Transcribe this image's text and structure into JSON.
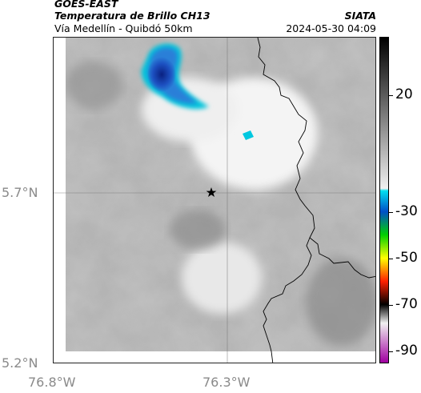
{
  "header": {
    "source": "GOES-EAST",
    "product": "Temperatura de Brillo CH13",
    "region": "Vía Medellín - Quibdó 50km",
    "org": "SIATA",
    "datetime": "2024-05-30 04:09"
  },
  "axes": {
    "x_ticks": [
      "76.8°W",
      "76.3°W"
    ],
    "y_ticks": [
      "5.7°N",
      "5.2°N"
    ]
  },
  "colorbar": {
    "ticks": [
      "20",
      "-30",
      "-50",
      "-70",
      "-90"
    ],
    "unit_range": [
      -95,
      45
    ],
    "stops": [
      {
        "v": 45,
        "c": "#000000"
      },
      {
        "v": -20,
        "c": "#f0f0f0"
      },
      {
        "v": -21,
        "c": "#00e0f0"
      },
      {
        "v": -30,
        "c": "#0050c8"
      },
      {
        "v": -40,
        "c": "#00d000"
      },
      {
        "v": -50,
        "c": "#ffff00"
      },
      {
        "v": -60,
        "c": "#ff2000"
      },
      {
        "v": -70,
        "c": "#000000"
      },
      {
        "v": -78,
        "c": "#f0f0f0"
      },
      {
        "v": -95,
        "c": "#a000a0"
      }
    ]
  },
  "map": {
    "marker": "star",
    "colors": {
      "cloud_cold": "#00c8e0",
      "cloud_core": "#1030a0",
      "background": "#b4b4b4",
      "border": "#000000"
    }
  }
}
